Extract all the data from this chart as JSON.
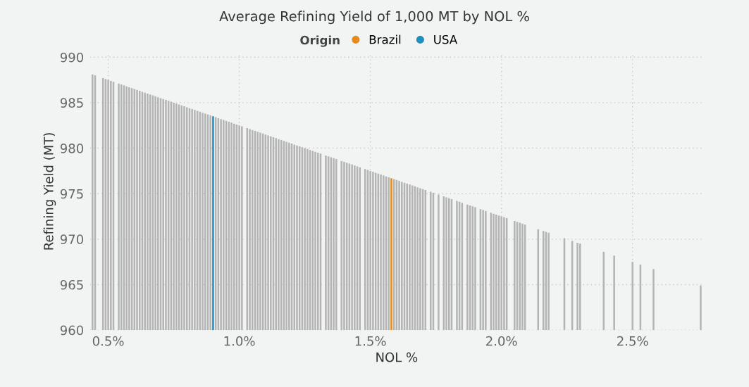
{
  "chart_data": {
    "type": "bar",
    "title": "Average Refining Yield of 1,000 MT by NOL %",
    "xlabel": "NOL %",
    "ylabel": "Refining Yield (MT)",
    "legend_title": "Origin",
    "legend": "top",
    "grid": true,
    "xlim": [
      0.43,
      2.77
    ],
    "ylim": [
      960,
      990.5
    ],
    "xticks": [
      {
        "value": 0.5,
        "label": "0.5%"
      },
      {
        "value": 1.0,
        "label": "1.0%"
      },
      {
        "value": 1.5,
        "label": "1.5%"
      },
      {
        "value": 2.0,
        "label": "2.0%"
      },
      {
        "value": 2.5,
        "label": "2.5%"
      }
    ],
    "yticks": [
      960,
      965,
      970,
      975,
      980,
      985,
      990
    ],
    "series": [
      {
        "color": "#b4b4b4",
        "x": [
          0.44,
          0.45,
          0.48,
          0.49,
          0.5,
          0.51,
          0.52,
          0.54,
          0.55,
          0.56,
          0.57,
          0.58,
          0.59,
          0.6,
          0.61,
          0.62,
          0.63,
          0.64,
          0.65,
          0.66,
          0.67,
          0.68,
          0.69,
          0.7,
          0.71,
          0.72,
          0.73,
          0.74,
          0.75,
          0.76,
          0.77,
          0.78,
          0.79,
          0.8,
          0.81,
          0.82,
          0.83,
          0.84,
          0.85,
          0.86,
          0.87,
          0.88,
          0.89,
          0.91,
          0.92,
          0.93,
          0.94,
          0.95,
          0.96,
          0.97,
          0.98,
          0.99,
          1.0,
          1.01,
          1.03,
          1.04,
          1.05,
          1.06,
          1.07,
          1.08,
          1.09,
          1.1,
          1.11,
          1.12,
          1.13,
          1.14,
          1.15,
          1.16,
          1.17,
          1.18,
          1.19,
          1.2,
          1.21,
          1.22,
          1.23,
          1.24,
          1.25,
          1.26,
          1.27,
          1.28,
          1.29,
          1.3,
          1.31,
          1.33,
          1.34,
          1.35,
          1.36,
          1.37,
          1.39,
          1.4,
          1.41,
          1.42,
          1.43,
          1.44,
          1.45,
          1.46,
          1.48,
          1.49,
          1.5,
          1.51,
          1.52,
          1.53,
          1.54,
          1.55,
          1.56,
          1.57,
          1.59,
          1.6,
          1.61,
          1.62,
          1.63,
          1.64,
          1.65,
          1.66,
          1.67,
          1.68,
          1.69,
          1.7,
          1.71,
          1.73,
          1.74,
          1.76,
          1.78,
          1.79,
          1.8,
          1.81,
          1.83,
          1.84,
          1.85,
          1.87,
          1.88,
          1.89,
          1.9,
          1.92,
          1.93,
          1.94,
          1.96,
          1.97,
          1.98,
          1.99,
          2.0,
          2.01,
          2.02,
          2.05,
          2.06,
          2.07,
          2.08,
          2.09,
          2.14,
          2.16,
          2.17,
          2.18,
          2.24,
          2.27,
          2.29,
          2.3,
          2.39,
          2.43,
          2.5,
          2.53,
          2.58,
          2.76
        ],
        "values": [
          988.1,
          988,
          987.7,
          987.6,
          987.5,
          987.4,
          987.3,
          987.1,
          987,
          986.9,
          986.8,
          986.7,
          986.6,
          986.5,
          986.4,
          986.3,
          986.2,
          986.1,
          986,
          985.9,
          985.8,
          985.7,
          985.6,
          985.5,
          985.4,
          985.3,
          985.2,
          985.1,
          985,
          984.9,
          984.8,
          984.7,
          984.6,
          984.5,
          984.4,
          984.3,
          984.2,
          984.1,
          984,
          983.9,
          983.8,
          983.7,
          983.6,
          983.4,
          983.3,
          983.2,
          983.1,
          983,
          982.9,
          982.8,
          982.7,
          982.6,
          982.5,
          982.4,
          982.2,
          982.1,
          982,
          981.9,
          981.8,
          981.7,
          981.6,
          981.5,
          981.4,
          981.3,
          981.2,
          981.1,
          981,
          980.9,
          980.8,
          980.7,
          980.6,
          980.5,
          980.4,
          980.3,
          980.2,
          980.1,
          980,
          979.9,
          979.8,
          979.7,
          979.6,
          979.5,
          979.4,
          979.2,
          979.1,
          979,
          978.9,
          978.8,
          978.6,
          978.5,
          978.4,
          978.3,
          978.2,
          978.1,
          978,
          977.9,
          977.7,
          977.6,
          977.5,
          977.4,
          977.3,
          977.2,
          977.1,
          977,
          976.9,
          976.8,
          976.6,
          976.5,
          976.4,
          976.3,
          976.2,
          976.1,
          976,
          975.9,
          975.8,
          975.7,
          975.6,
          975.5,
          975.4,
          975.2,
          975.1,
          974.9,
          974.7,
          974.6,
          974.5,
          974.4,
          974.2,
          974.1,
          974,
          973.8,
          973.7,
          973.6,
          973.5,
          973.3,
          973.2,
          973.1,
          972.9,
          972.8,
          972.7,
          972.6,
          972.5,
          972.4,
          972.3,
          972,
          971.9,
          971.8,
          971.7,
          971.6,
          971.1,
          970.9,
          970.8,
          970.7,
          970.1,
          969.8,
          969.6,
          969.5,
          968.6,
          968.2,
          967.5,
          967.2,
          966.7,
          964.9
        ]
      },
      {
        "name": "Brazil",
        "color": "#e8891c",
        "x": [
          1.58
        ],
        "values": [
          976.7
        ]
      },
      {
        "name": "USA",
        "color": "#1f8fc0",
        "x": [
          0.9
        ],
        "values": [
          983.5
        ]
      }
    ]
  }
}
